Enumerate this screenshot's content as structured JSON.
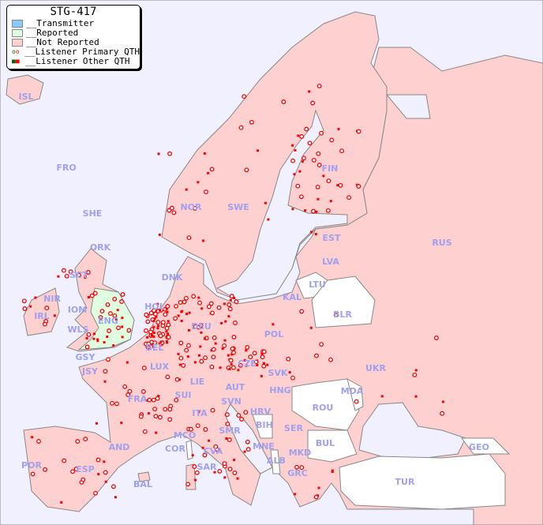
{
  "title": "STG-417",
  "legend": [
    {
      "label": "__Transmitter",
      "color": "#88ccff"
    },
    {
      "label": "__Reported",
      "color": "#e0ffe0"
    },
    {
      "label": "__Not Reported",
      "color": "#ffd0d0"
    },
    {
      "label": "__Listener Primary QTH",
      "color": "#ff0000"
    },
    {
      "label": "__Listener Other QTH",
      "color": "#ff0000"
    }
  ],
  "colors": {
    "ocean": "#f0f0ff",
    "not_reported": "#ffd0d0",
    "reported": "#e0ffe0",
    "no_data": "#ffffff",
    "label": "#a0a0f0",
    "dot": "#ff0000"
  },
  "countries": [
    "ISL",
    "FRO",
    "SHE",
    "ORK",
    "SCT",
    "NIR",
    "IRL",
    "IOM",
    "WLS",
    "ENG",
    "GSY",
    "JSY",
    "DNK",
    "HOL",
    "BEL",
    "LUX",
    "DEU",
    "FRA",
    "SUI",
    "LIE",
    "AUT",
    "CZE",
    "POL",
    "SVK",
    "HNG",
    "SVN",
    "HRV",
    "BIH",
    "SER",
    "MNE",
    "ALB",
    "MKD",
    "GRC",
    "BUL",
    "ROU",
    "MDA",
    "UKR",
    "BLR",
    "LTU",
    "LVA",
    "EST",
    "KAL",
    "RUS",
    "FIN",
    "SWE",
    "NOR",
    "ITA",
    "SMR",
    "MCO",
    "COR",
    "CVA",
    "SAR",
    "AND",
    "ESP",
    "POR",
    "BAL",
    "TUR",
    "GEO"
  ]
}
